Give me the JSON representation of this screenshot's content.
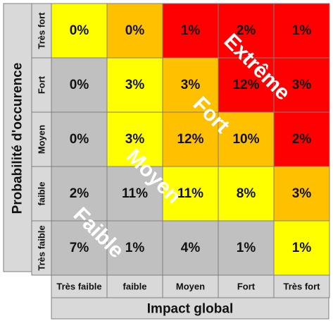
{
  "chart_data": {
    "type": "heatmap",
    "xlabel": "Impact global",
    "ylabel": "Probabilité d'occurence",
    "x_categories": [
      "Très faible",
      "faible",
      "Moyen",
      "Fort",
      "Très fort"
    ],
    "y_categories": [
      "Très fort",
      "Fort",
      "Moyen",
      "faible",
      "Très faible"
    ],
    "values": [
      [
        "0%",
        "0%",
        "1%",
        "2%",
        "1%"
      ],
      [
        "0%",
        "3%",
        "3%",
        "12%",
        "3%"
      ],
      [
        "0%",
        "3%",
        "12%",
        "10%",
        "2%"
      ],
      [
        "2%",
        "11%",
        "11%",
        "8%",
        "3%"
      ],
      [
        "7%",
        "1%",
        "4%",
        "1%",
        "1%"
      ]
    ],
    "cell_levels": [
      [
        "yellow",
        "orange",
        "red",
        "red",
        "red"
      ],
      [
        "gray",
        "yellow",
        "orange",
        "red",
        "red"
      ],
      [
        "gray",
        "yellow",
        "orange",
        "orange",
        "red"
      ],
      [
        "gray",
        "gray",
        "yellow",
        "yellow",
        "orange"
      ],
      [
        "gray",
        "gray",
        "gray",
        "gray",
        "yellow"
      ]
    ],
    "level_colors": {
      "gray": "#c0c0c0",
      "yellow": "#ffff00",
      "orange": "#ffc000",
      "red": "#ff0000"
    },
    "zones": [
      {
        "label": "Extrême"
      },
      {
        "label": "Fort"
      },
      {
        "label": "Moyen"
      },
      {
        "label": "Faible"
      }
    ],
    "header_fill": "#d9d9d9",
    "grid_color": "#7f7f7f",
    "zone_text_color": "#ffffff"
  }
}
